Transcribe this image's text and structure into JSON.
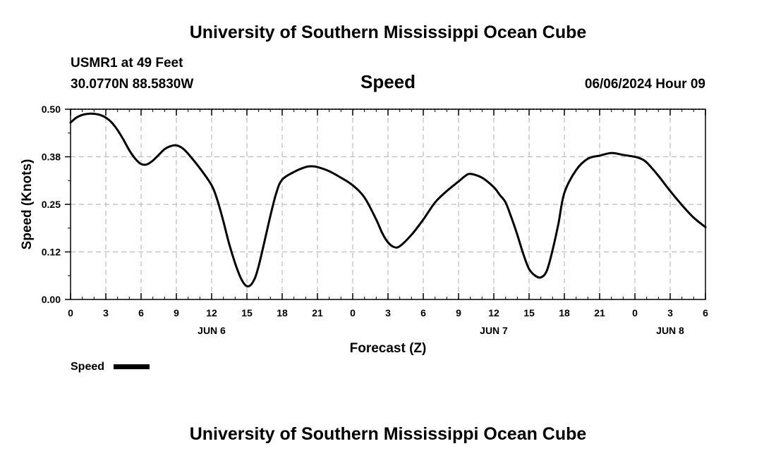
{
  "header": {
    "title": "University of Southern Mississippi Ocean Cube",
    "station": "USMR1 at 49 Feet",
    "coords": "30.0770N  88.5830W",
    "variable": "Speed",
    "datetime": "06/06/2024 Hour 09"
  },
  "footer": {
    "title": "University of Southern Mississippi Ocean Cube"
  },
  "chart_data": {
    "type": "line",
    "title": "Speed",
    "xlabel": "Forecast (Z)",
    "ylabel": "Speed (Knots)",
    "ylim": [
      0,
      0.5
    ],
    "xlim": [
      0,
      54
    ],
    "grid": true,
    "legend": "bottom-left",
    "y_ticks": [
      {
        "value": 0,
        "label": "0.00"
      },
      {
        "value": 0.125,
        "label": "0.12"
      },
      {
        "value": 0.25,
        "label": "0.25"
      },
      {
        "value": 0.375,
        "label": "0.38"
      },
      {
        "value": 0.5,
        "label": "0.50"
      }
    ],
    "x_ticks": [
      {
        "value": 0,
        "label": "0"
      },
      {
        "value": 3,
        "label": "3"
      },
      {
        "value": 6,
        "label": "6"
      },
      {
        "value": 9,
        "label": "9"
      },
      {
        "value": 12,
        "label": "12"
      },
      {
        "value": 15,
        "label": "15"
      },
      {
        "value": 18,
        "label": "18"
      },
      {
        "value": 21,
        "label": "21"
      },
      {
        "value": 24,
        "label": "0"
      },
      {
        "value": 27,
        "label": "3"
      },
      {
        "value": 30,
        "label": "6"
      },
      {
        "value": 33,
        "label": "9"
      },
      {
        "value": 36,
        "label": "12"
      },
      {
        "value": 39,
        "label": "15"
      },
      {
        "value": 42,
        "label": "18"
      },
      {
        "value": 45,
        "label": "21"
      },
      {
        "value": 48,
        "label": "0"
      },
      {
        "value": 51,
        "label": "3"
      },
      {
        "value": 54,
        "label": "6"
      }
    ],
    "day_labels": [
      {
        "value": 12,
        "label": "JUN 6"
      },
      {
        "value": 36,
        "label": "JUN 7"
      },
      {
        "value": 51,
        "label": "JUN 8"
      }
    ],
    "series": [
      {
        "name": "Speed",
        "color": "#000000",
        "x": [
          0,
          0.5,
          1,
          1.5,
          2,
          2.5,
          3,
          3.5,
          4,
          4.5,
          5,
          5.5,
          6,
          6.5,
          7,
          7.5,
          8,
          8.5,
          9,
          9.5,
          10,
          11,
          12,
          12.5,
          13,
          13.5,
          14,
          14.5,
          15,
          15.5,
          16,
          17,
          17.5,
          18,
          19,
          20,
          20.5,
          21,
          22,
          23,
          24,
          25,
          26,
          26.5,
          27,
          27.5,
          28,
          29,
          30,
          31,
          32,
          33,
          33.5,
          34,
          35,
          36,
          36.5,
          37,
          37.5,
          38,
          38.5,
          39,
          39.5,
          40,
          40.5,
          41,
          41.5,
          42,
          43,
          44,
          45,
          46,
          47,
          48,
          48.5,
          49,
          50,
          51,
          52,
          53,
          54
        ],
        "values": [
          0.465,
          0.478,
          0.485,
          0.488,
          0.488,
          0.485,
          0.478,
          0.465,
          0.445,
          0.42,
          0.392,
          0.37,
          0.356,
          0.355,
          0.365,
          0.38,
          0.395,
          0.403,
          0.405,
          0.398,
          0.383,
          0.345,
          0.3,
          0.26,
          0.205,
          0.145,
          0.095,
          0.055,
          0.035,
          0.045,
          0.088,
          0.22,
          0.28,
          0.315,
          0.335,
          0.348,
          0.35,
          0.348,
          0.337,
          0.32,
          0.3,
          0.268,
          0.21,
          0.175,
          0.15,
          0.138,
          0.14,
          0.17,
          0.21,
          0.255,
          0.285,
          0.31,
          0.323,
          0.33,
          0.32,
          0.295,
          0.275,
          0.255,
          0.215,
          0.17,
          0.12,
          0.08,
          0.063,
          0.058,
          0.075,
          0.13,
          0.2,
          0.28,
          0.34,
          0.37,
          0.378,
          0.385,
          0.38,
          0.375,
          0.37,
          0.36,
          0.325,
          0.285,
          0.248,
          0.215,
          0.19
        ]
      }
    ]
  }
}
